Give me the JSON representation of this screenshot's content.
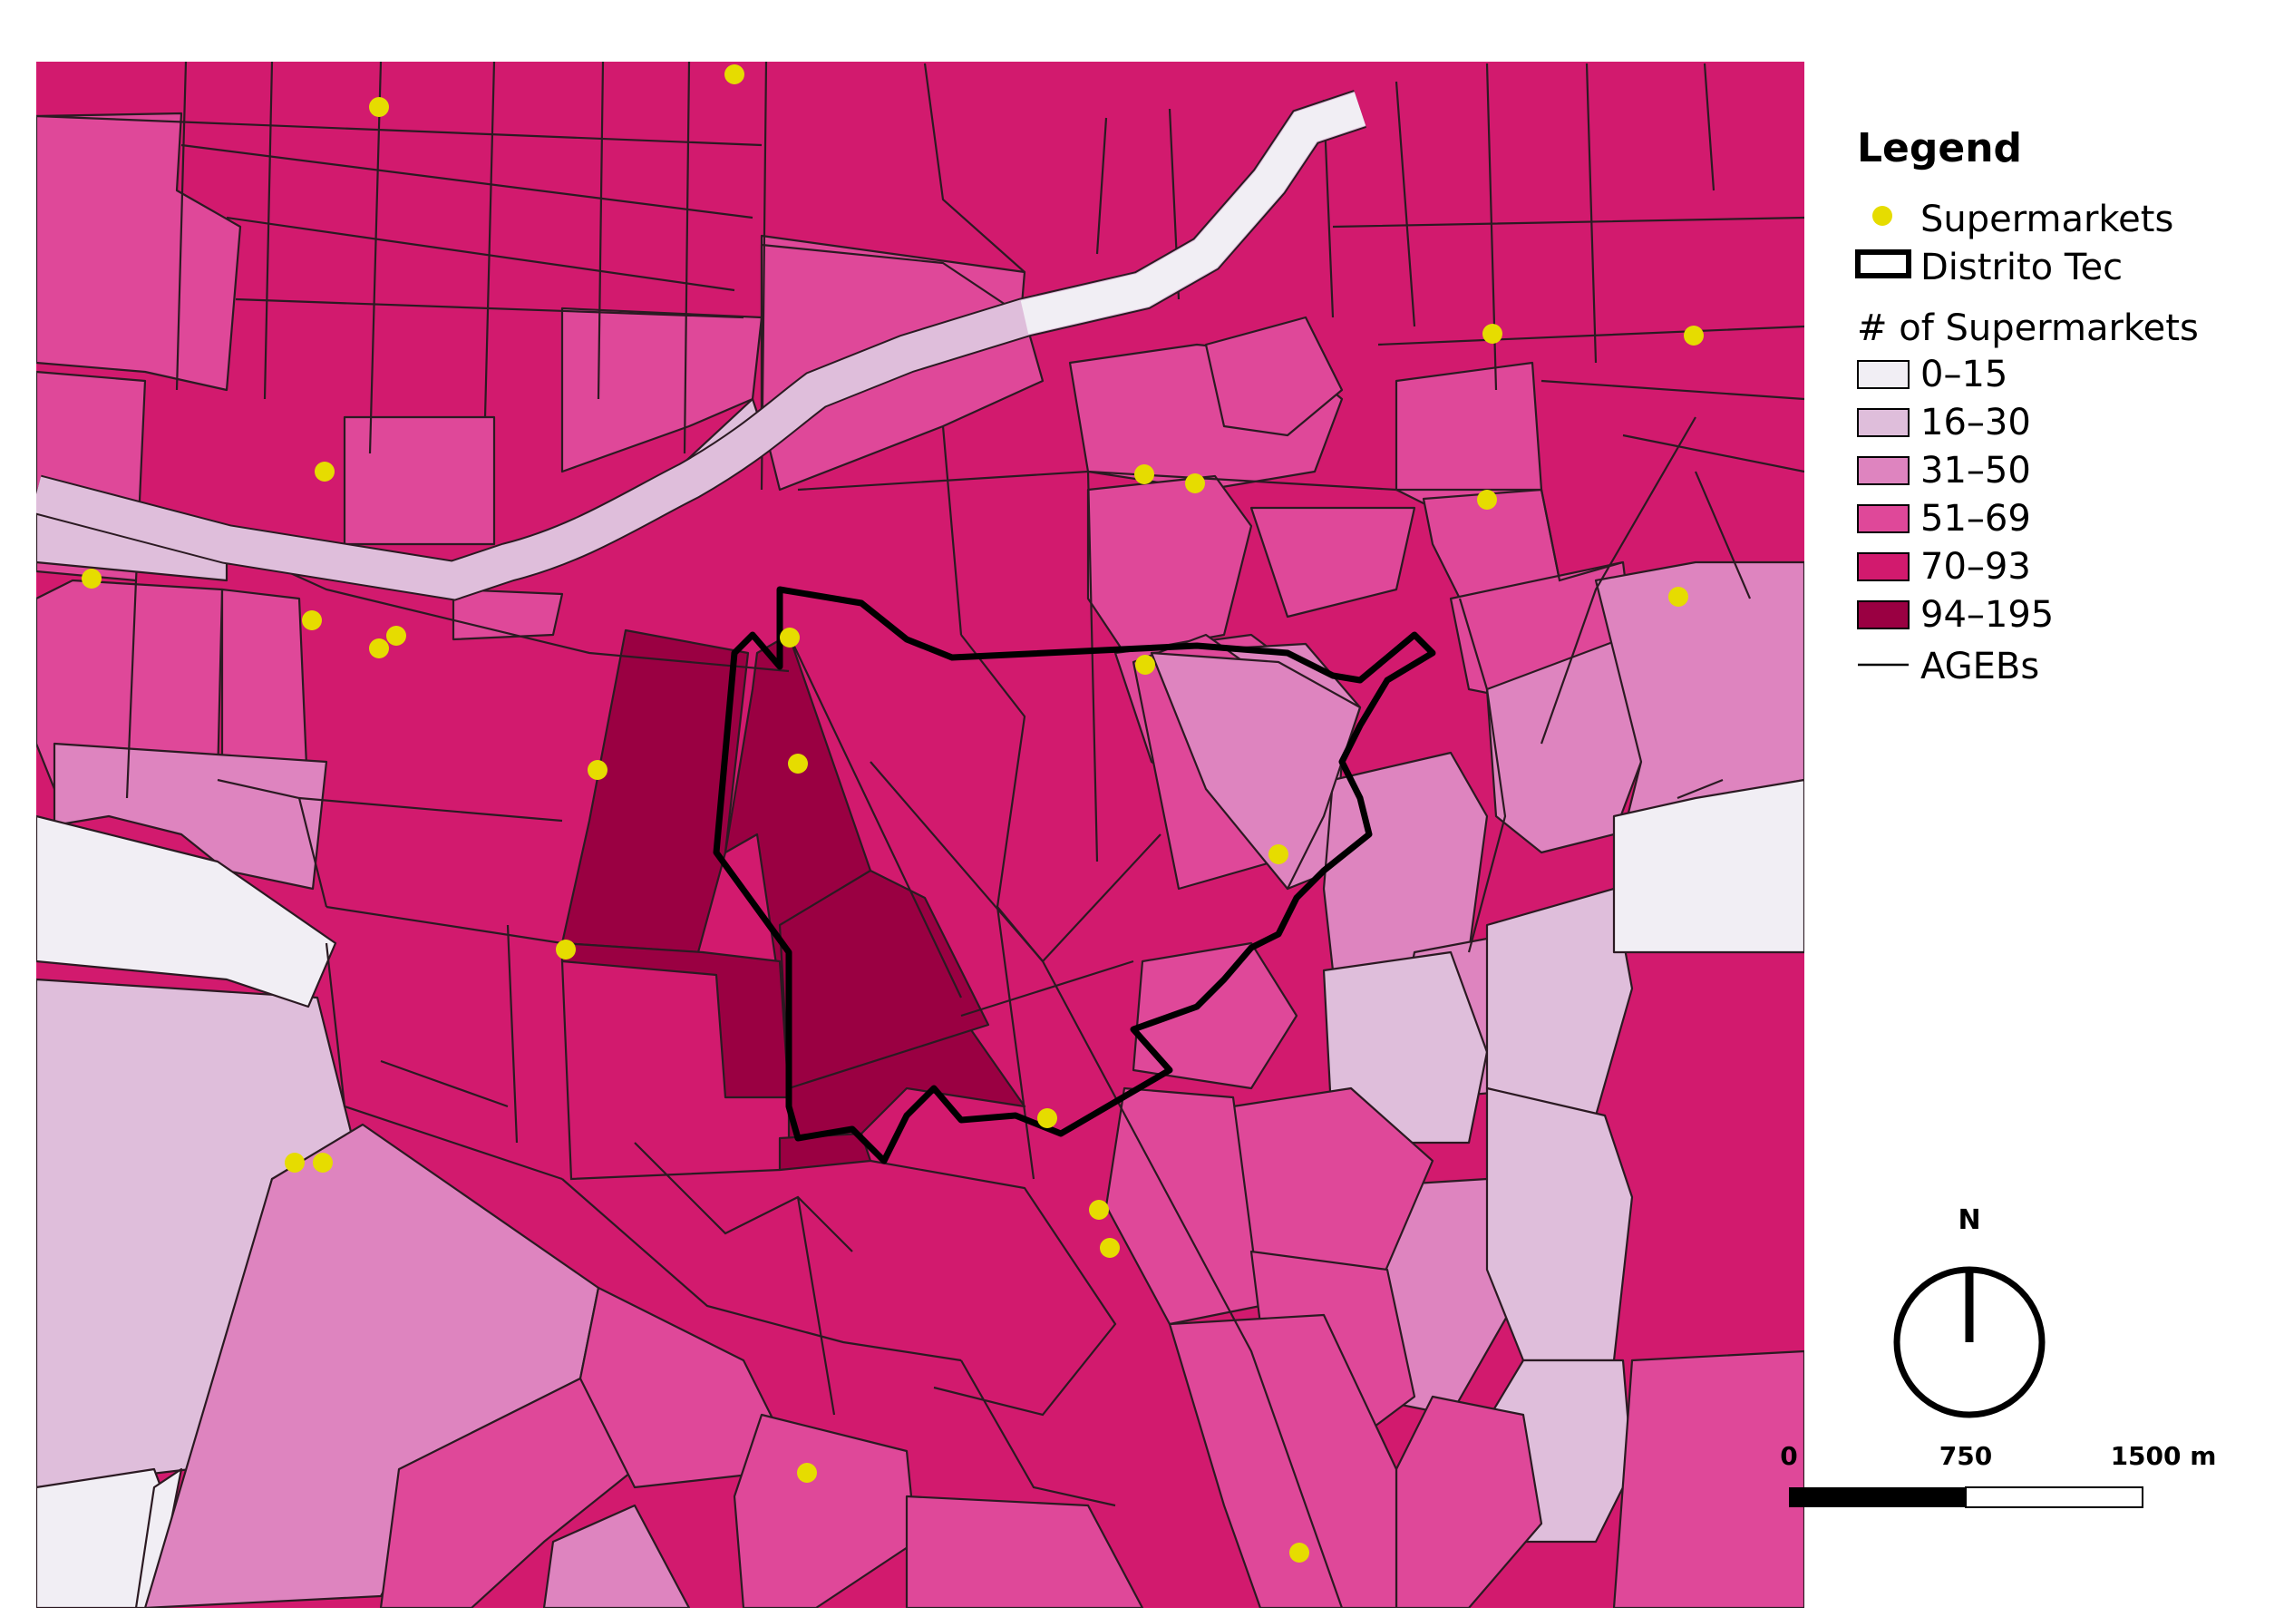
{
  "legend": {
    "title": "Legend",
    "supermarkets_label": "Supermarkets",
    "district_label": "Distrito Tec",
    "classes_title": "# of Supermarkets",
    "classes": [
      {
        "label": "0–15",
        "color": "#f1eef4"
      },
      {
        "label": "16–30",
        "color": "#dfbedb"
      },
      {
        "label": "31–50",
        "color": "#de84bf"
      },
      {
        "label": "51–69",
        "color": "#df4899"
      },
      {
        "label": "70–93",
        "color": "#d21a6e"
      },
      {
        "label": "94–195",
        "color": "#9a0042"
      }
    ],
    "agebs_label": "AGEBs"
  },
  "colors": {
    "supermarket": "#e6dc00",
    "district_outline": "#000000",
    "river": "#ffffff",
    "ageb_line": "#2b1a22"
  },
  "north_arrow": {
    "label": "N",
    "icon": "north-arrow-icon"
  },
  "scale_bar": {
    "labels": [
      "0",
      "750",
      "1500 m"
    ]
  }
}
